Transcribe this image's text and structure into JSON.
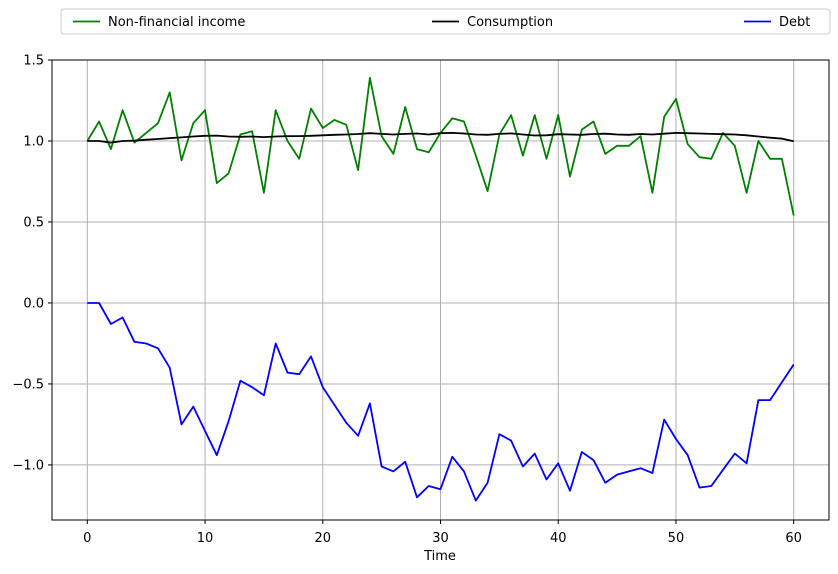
{
  "legend": {
    "items": [
      {
        "label": "Non-financial income",
        "color": "#008000"
      },
      {
        "label": "Consumption",
        "color": "#000000"
      },
      {
        "label": "Debt",
        "color": "#0000ff"
      }
    ],
    "border_color": "#cccccc",
    "background": "#ffffff"
  },
  "axes": {
    "xlabel": "Time",
    "spine_color": "#000000",
    "grid_color": "#b0b0b0",
    "background": "#ffffff"
  },
  "chart_data": {
    "type": "line",
    "title": "",
    "xlabel": "Time",
    "ylabel": "",
    "grid": true,
    "legend_position": "top-horizontal",
    "xlim": [
      -3,
      63
    ],
    "ylim": [
      -1.34,
      1.5
    ],
    "xticks": [
      0,
      10,
      20,
      30,
      40,
      50,
      60
    ],
    "xtick_labels": [
      "0",
      "10",
      "20",
      "30",
      "40",
      "50",
      "60"
    ],
    "yticks": [
      1.5,
      1.0,
      0.5,
      0.0,
      -0.5,
      -1.0
    ],
    "ytick_labels": [
      "1.5",
      "1.0",
      "0.5",
      "0.0",
      "−0.5",
      "−1.0"
    ],
    "x": [
      0,
      1,
      2,
      3,
      4,
      5,
      6,
      7,
      8,
      9,
      10,
      11,
      12,
      13,
      14,
      15,
      16,
      17,
      18,
      19,
      20,
      21,
      22,
      23,
      24,
      25,
      26,
      27,
      28,
      29,
      30,
      31,
      32,
      33,
      34,
      35,
      36,
      37,
      38,
      39,
      40,
      41,
      42,
      43,
      44,
      45,
      46,
      47,
      48,
      49,
      50,
      51,
      52,
      53,
      54,
      55,
      56,
      57,
      58,
      59,
      60
    ],
    "series": [
      {
        "name": "Non-financial income",
        "color": "#008000",
        "values": [
          1.0,
          1.12,
          0.95,
          1.19,
          0.99,
          1.05,
          1.11,
          1.3,
          0.88,
          1.11,
          1.19,
          0.74,
          0.8,
          1.04,
          1.06,
          0.68,
          1.19,
          1.0,
          0.89,
          1.2,
          1.08,
          1.13,
          1.1,
          0.82,
          1.39,
          1.03,
          0.92,
          1.21,
          0.95,
          0.93,
          1.05,
          1.14,
          1.12,
          0.91,
          0.69,
          1.04,
          1.16,
          0.91,
          1.16,
          0.89,
          1.16,
          0.78,
          1.07,
          1.12,
          0.92,
          0.97,
          0.97,
          1.03,
          0.68,
          1.15,
          1.26,
          0.98,
          0.9,
          0.89,
          1.05,
          0.97,
          0.68,
          1.0,
          0.89,
          0.89,
          0.54
        ]
      },
      {
        "name": "Consumption",
        "color": "#000000",
        "values": [
          1.0,
          1.0,
          0.99,
          1.0,
          1.002,
          1.008,
          1.012,
          1.018,
          1.022,
          1.028,
          1.032,
          1.033,
          1.028,
          1.026,
          1.028,
          1.024,
          1.028,
          1.03,
          1.03,
          1.032,
          1.035,
          1.038,
          1.04,
          1.043,
          1.048,
          1.044,
          1.04,
          1.044,
          1.046,
          1.04,
          1.048,
          1.05,
          1.046,
          1.04,
          1.038,
          1.044,
          1.047,
          1.04,
          1.034,
          1.035,
          1.042,
          1.04,
          1.038,
          1.043,
          1.045,
          1.04,
          1.038,
          1.043,
          1.04,
          1.045,
          1.05,
          1.048,
          1.046,
          1.044,
          1.042,
          1.04,
          1.035,
          1.028,
          1.02,
          1.015,
          0.998
        ]
      },
      {
        "name": "Debt",
        "color": "#0000ff",
        "values": [
          0.0,
          0.0,
          -0.13,
          -0.09,
          -0.24,
          -0.25,
          -0.28,
          -0.4,
          -0.75,
          -0.64,
          -0.79,
          -0.94,
          -0.73,
          -0.48,
          -0.52,
          -0.57,
          -0.25,
          -0.43,
          -0.44,
          -0.33,
          -0.52,
          -0.63,
          -0.74,
          -0.82,
          -0.62,
          -1.01,
          -1.04,
          -0.98,
          -1.2,
          -1.13,
          -1.15,
          -0.95,
          -1.04,
          -1.22,
          -1.11,
          -0.81,
          -0.85,
          -1.01,
          -0.93,
          -1.09,
          -0.99,
          -1.16,
          -0.92,
          -0.97,
          -1.11,
          -1.06,
          -1.04,
          -1.02,
          -1.05,
          -0.72,
          -0.84,
          -0.94,
          -1.14,
          -1.13,
          -1.03,
          -0.93,
          -0.99,
          -0.6,
          -0.6,
          -0.49,
          -0.38
        ]
      }
    ]
  }
}
